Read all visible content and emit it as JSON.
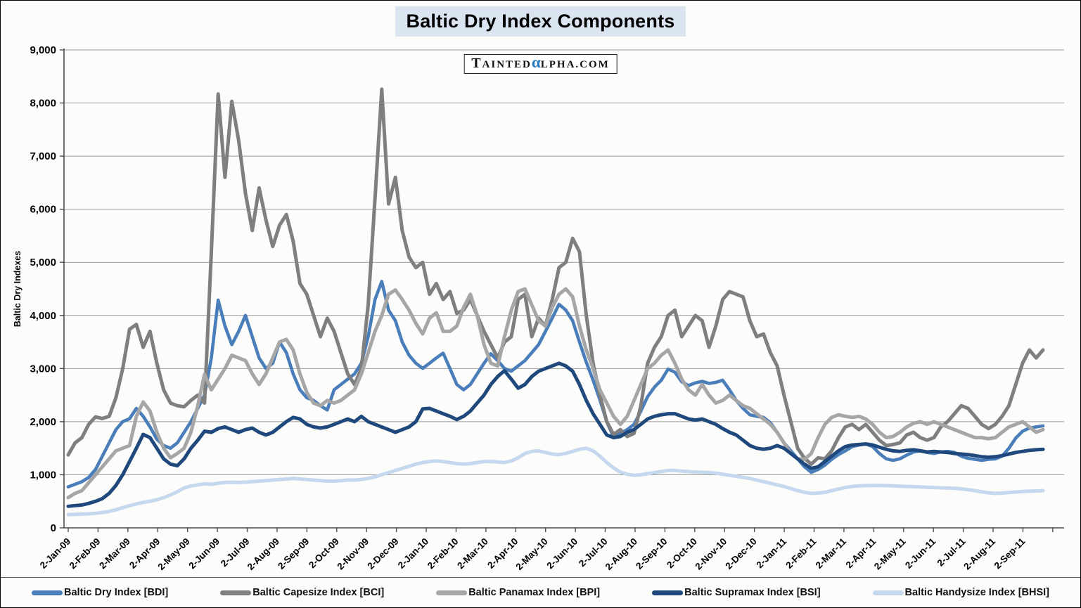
{
  "title": "Baltic Dry Index Components",
  "watermark": {
    "part1": "T",
    "part2": "AINTED",
    "alpha": "α",
    "part3": "LPHA.COM"
  },
  "colors": {
    "bdi": "#4a7ebb",
    "bci": "#7f7f7f",
    "bpi": "#a6a6a6",
    "bsi": "#1f497d",
    "bhsi": "#c5d8ee",
    "title_bg": "#dbe5f1",
    "alpha_blue": "#2878be",
    "gridline": "#9a9a9a",
    "axis": "#4d4d4d"
  },
  "y_axis": {
    "title": "Baltic Dry Indexes",
    "tick_values": [
      0,
      1000,
      2000,
      3000,
      4000,
      5000,
      6000,
      7000,
      8000,
      9000
    ],
    "tick_labels": [
      "0",
      "1,000",
      "2,000",
      "3,000",
      "4,000",
      "5,000",
      "6,000",
      "7,000",
      "8,000",
      "9,000"
    ]
  },
  "x_axis": {
    "tick_labels": [
      "2-Jan-09",
      "2-Feb-09",
      "2-Mar-09",
      "2-Apr-09",
      "2-May-09",
      "2-Jun-09",
      "2-Jul-09",
      "2-Aug-09",
      "2-Sep-09",
      "2-Oct-09",
      "2-Nov-09",
      "2-Dec-09",
      "2-Jan-10",
      "2-Feb-10",
      "2-Mar-10",
      "2-Apr-10",
      "2-May-10",
      "2-Jun-10",
      "2-Jul-10",
      "2-Aug-10",
      "2-Sep-10",
      "2-Oct-10",
      "2-Nov-10",
      "2-Dec-10",
      "2-Jan-11",
      "2-Feb-11",
      "2-Mar-11",
      "2-Apr-11",
      "2-May-11",
      "2-Jun-11",
      "2-Jul-11",
      "2-Aug-11",
      "2-Sep-11"
    ]
  },
  "legend": [
    {
      "label": "Baltic Dry Index [BDI]",
      "series_key": "bdi"
    },
    {
      "label": "Baltic Capesize Index [BCI]",
      "series_key": "bci"
    },
    {
      "label": "Baltic Panamax Index [BPI]",
      "series_key": "bpi"
    },
    {
      "label": "Baltic Supramax Index [BSI]",
      "series_key": "bsi"
    },
    {
      "label": "Baltic Handysize Index [BHSI]",
      "series_key": "bhsi"
    }
  ],
  "chart_data": {
    "type": "line",
    "title": "Baltic Dry Index Components",
    "ylabel": "Baltic Dry Indexes",
    "ylim": [
      0,
      9000
    ],
    "grid": "horizontal",
    "legend_position": "bottom",
    "x_unit": "weekly samples, week 0 = 2-Jan-09, through late Sep-11",
    "x_tick_months": "monthly from 2-Jan-09 to 2-Sep-11",
    "series": [
      {
        "name": "Baltic Dry Index [BDI]",
        "color_key": "bdi",
        "stroke_width": 4.6,
        "values": [
          773,
          820,
          870,
          950,
          1100,
          1350,
          1600,
          1850,
          2000,
          2055,
          2250,
          2100,
          1900,
          1670,
          1550,
          1500,
          1600,
          1800,
          2000,
          2250,
          2500,
          3200,
          4290,
          3800,
          3450,
          3700,
          4000,
          3600,
          3200,
          3000,
          3100,
          3500,
          3300,
          2900,
          2600,
          2450,
          2400,
          2300,
          2220,
          2600,
          2700,
          2800,
          2900,
          3100,
          3600,
          4300,
          4640,
          4100,
          3900,
          3500,
          3250,
          3100,
          3005,
          3100,
          3200,
          3290,
          3000,
          2700,
          2600,
          2700,
          2900,
          3100,
          3280,
          3150,
          3000,
          2950,
          3050,
          3150,
          3300,
          3450,
          3700,
          3950,
          4210,
          4100,
          3900,
          3500,
          3120,
          2780,
          2410,
          2000,
          1710,
          1780,
          1850,
          1950,
          2200,
          2470,
          2650,
          2780,
          2990,
          2930,
          2750,
          2680,
          2730,
          2760,
          2720,
          2740,
          2780,
          2600,
          2400,
          2250,
          2130,
          2100,
          2080,
          1980,
          1800,
          1600,
          1450,
          1300,
          1150,
          1045,
          1100,
          1180,
          1290,
          1380,
          1450,
          1530,
          1560,
          1580,
          1530,
          1400,
          1300,
          1270,
          1300,
          1370,
          1430,
          1450,
          1420,
          1400,
          1430,
          1440,
          1420,
          1350,
          1310,
          1290,
          1270,
          1290,
          1300,
          1350,
          1500,
          1690,
          1820,
          1880,
          1900,
          1920
        ]
      },
      {
        "name": "Baltic Capesize Index [BCI]",
        "color_key": "bci",
        "stroke_width": 5,
        "values": [
          1375,
          1600,
          1700,
          1950,
          2090,
          2060,
          2100,
          2450,
          3000,
          3740,
          3830,
          3400,
          3700,
          3100,
          2600,
          2350,
          2300,
          2280,
          2400,
          2500,
          2350,
          5200,
          8170,
          6600,
          8030,
          7300,
          6300,
          5600,
          6400,
          5800,
          5300,
          5700,
          5900,
          5400,
          4600,
          4400,
          4000,
          3600,
          3950,
          3700,
          3300,
          2900,
          2700,
          3000,
          4200,
          6200,
          8260,
          6100,
          6600,
          5600,
          5100,
          4900,
          5000,
          4400,
          4600,
          4300,
          4450,
          4040,
          4100,
          4300,
          4000,
          3700,
          3450,
          3200,
          3500,
          3600,
          4300,
          4400,
          3600,
          3950,
          3800,
          4300,
          4900,
          5000,
          5452,
          5200,
          4000,
          3100,
          2500,
          2000,
          1760,
          1850,
          1720,
          1780,
          2300,
          3100,
          3400,
          3600,
          4000,
          4100,
          3600,
          3800,
          4000,
          3900,
          3400,
          3800,
          4300,
          4450,
          4400,
          4350,
          3900,
          3600,
          3650,
          3300,
          3050,
          2500,
          2000,
          1500,
          1310,
          1200,
          1320,
          1300,
          1450,
          1700,
          1900,
          1950,
          1850,
          1950,
          1800,
          1650,
          1550,
          1570,
          1600,
          1750,
          1800,
          1700,
          1650,
          1700,
          1900,
          2000,
          2150,
          2300,
          2250,
          2100,
          1950,
          1870,
          1950,
          2100,
          2300,
          2700,
          3100,
          3350,
          3200,
          3350
        ]
      },
      {
        "name": "Baltic Panamax Index [BPI]",
        "color_key": "bpi",
        "stroke_width": 5,
        "values": [
          570,
          650,
          700,
          850,
          1000,
          1150,
          1300,
          1450,
          1500,
          1550,
          2100,
          2370,
          2200,
          1800,
          1500,
          1320,
          1400,
          1500,
          1800,
          2300,
          2890,
          2600,
          2800,
          3000,
          3250,
          3200,
          3150,
          2900,
          2700,
          2900,
          3200,
          3500,
          3550,
          3350,
          2900,
          2550,
          2350,
          2300,
          2400,
          2350,
          2400,
          2500,
          2600,
          2900,
          3300,
          3700,
          4000,
          4400,
          4480,
          4300,
          4100,
          3850,
          3650,
          3950,
          4050,
          3700,
          3700,
          3800,
          4150,
          4400,
          4000,
          3450,
          3100,
          3050,
          3600,
          4100,
          4450,
          4500,
          4200,
          3900,
          3800,
          4150,
          4400,
          4500,
          4350,
          3800,
          3350,
          3000,
          2600,
          2350,
          2100,
          1950,
          2100,
          2400,
          2700,
          3000,
          3100,
          3250,
          3350,
          3100,
          2800,
          2600,
          2500,
          2700,
          2500,
          2350,
          2400,
          2500,
          2400,
          2300,
          2250,
          2150,
          2050,
          1950,
          1800,
          1600,
          1400,
          1300,
          1290,
          1400,
          1700,
          1950,
          2080,
          2130,
          2100,
          2080,
          2100,
          2050,
          1950,
          1800,
          1700,
          1720,
          1800,
          1900,
          1970,
          2000,
          1950,
          2000,
          1950,
          1900,
          1850,
          1800,
          1750,
          1700,
          1700,
          1680,
          1700,
          1800,
          1900,
          1950,
          2000,
          1900,
          1800,
          1850
        ]
      },
      {
        "name": "Baltic Supramax Index [BSI]",
        "color_key": "bsi",
        "stroke_width": 5,
        "values": [
          406,
          420,
          430,
          460,
          500,
          550,
          650,
          800,
          1000,
          1250,
          1500,
          1760,
          1700,
          1500,
          1300,
          1200,
          1170,
          1300,
          1500,
          1650,
          1820,
          1800,
          1870,
          1900,
          1850,
          1800,
          1850,
          1880,
          1800,
          1750,
          1800,
          1900,
          2000,
          2080,
          2050,
          1950,
          1900,
          1880,
          1900,
          1950,
          2000,
          2050,
          2000,
          2100,
          2000,
          1950,
          1900,
          1850,
          1800,
          1850,
          1900,
          2000,
          2240,
          2250,
          2200,
          2150,
          2100,
          2040,
          2100,
          2200,
          2350,
          2500,
          2700,
          2850,
          2960,
          2800,
          2630,
          2700,
          2850,
          2950,
          3000,
          3050,
          3100,
          3050,
          2950,
          2700,
          2400,
          2150,
          1950,
          1750,
          1700,
          1720,
          1800,
          1850,
          1950,
          2050,
          2100,
          2130,
          2150,
          2150,
          2100,
          2050,
          2030,
          2050,
          2000,
          1950,
          1870,
          1800,
          1750,
          1650,
          1550,
          1500,
          1480,
          1500,
          1550,
          1500,
          1400,
          1300,
          1200,
          1120,
          1150,
          1250,
          1350,
          1450,
          1530,
          1560,
          1570,
          1580,
          1560,
          1520,
          1480,
          1450,
          1440,
          1460,
          1470,
          1450,
          1430,
          1440,
          1430,
          1420,
          1400,
          1390,
          1380,
          1360,
          1340,
          1330,
          1340,
          1360,
          1390,
          1420,
          1440,
          1460,
          1470,
          1480
        ]
      },
      {
        "name": "Baltic Handysize Index [BHSI]",
        "color_key": "bhsi",
        "stroke_width": 5,
        "values": [
          250,
          255,
          260,
          265,
          275,
          290,
          310,
          340,
          380,
          420,
          450,
          480,
          500,
          530,
          570,
          620,
          680,
          750,
          790,
          810,
          830,
          820,
          840,
          855,
          860,
          855,
          860,
          870,
          880,
          890,
          900,
          910,
          920,
          930,
          920,
          910,
          900,
          890,
          880,
          880,
          890,
          900,
          900,
          910,
          930,
          960,
          1000,
          1040,
          1080,
          1120,
          1160,
          1200,
          1230,
          1250,
          1260,
          1250,
          1230,
          1210,
          1200,
          1210,
          1230,
          1250,
          1250,
          1240,
          1230,
          1260,
          1320,
          1400,
          1440,
          1450,
          1420,
          1390,
          1380,
          1400,
          1440,
          1480,
          1500,
          1450,
          1350,
          1230,
          1130,
          1050,
          1010,
          990,
          1000,
          1020,
          1040,
          1060,
          1080,
          1080,
          1070,
          1060,
          1050,
          1050,
          1040,
          1030,
          1010,
          990,
          970,
          950,
          930,
          900,
          870,
          840,
          810,
          780,
          740,
          700,
          670,
          650,
          655,
          670,
          700,
          730,
          760,
          780,
          790,
          795,
          800,
          800,
          795,
          790,
          785,
          780,
          775,
          770,
          765,
          760,
          755,
          750,
          745,
          735,
          720,
          700,
          680,
          660,
          650,
          655,
          665,
          675,
          685,
          690,
          695,
          700
        ]
      }
    ]
  }
}
